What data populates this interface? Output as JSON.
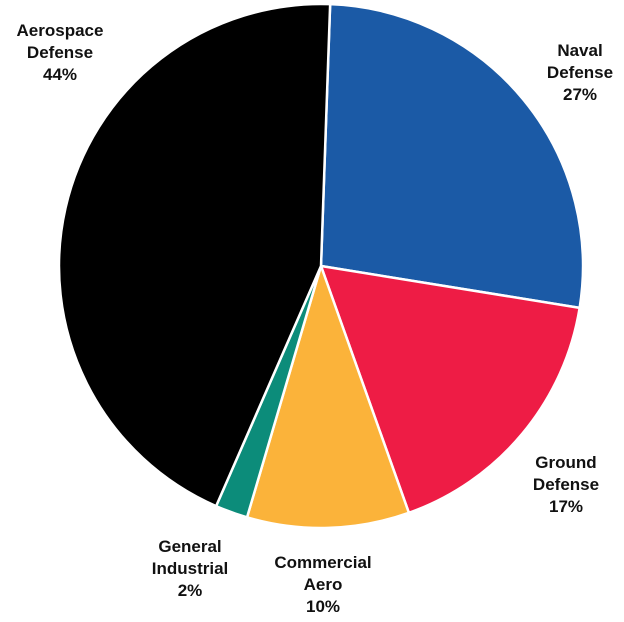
{
  "chart_data": {
    "type": "pie",
    "title": "",
    "start_angle_deg": 2,
    "direction": "clockwise",
    "slices": [
      {
        "key": "naval-defense",
        "label": [
          "Naval",
          "Defense",
          "27%"
        ],
        "value": 27,
        "color": "#1b5aa6"
      },
      {
        "key": "ground-defense",
        "label": [
          "Ground",
          "Defense",
          "17%"
        ],
        "value": 17,
        "color": "#ee1c45"
      },
      {
        "key": "commercial-aero",
        "label": [
          "Commercial",
          "Aero",
          "10%"
        ],
        "value": 10,
        "color": "#fbb33a"
      },
      {
        "key": "general-industrial",
        "label": [
          "General",
          "Industrial",
          "2%"
        ],
        "value": 2,
        "color": "#0c8c7a"
      },
      {
        "key": "aerospace-defense",
        "label": [
          "Aerospace",
          "Defense",
          "44%"
        ],
        "value": 44,
        "color": "#000000"
      }
    ]
  }
}
